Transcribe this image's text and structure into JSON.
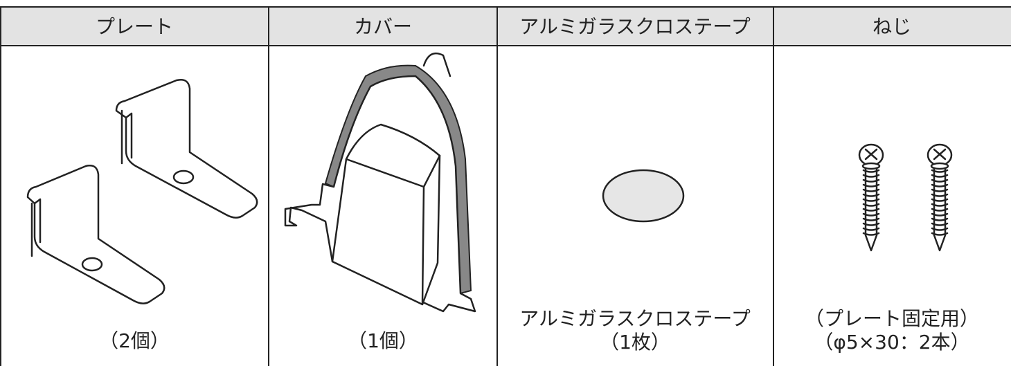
{
  "table": {
    "headers": [
      "プレート",
      "カバー",
      "アルミガラスクロステープ",
      "ねじ"
    ],
    "captions": [
      [
        "（2個）"
      ],
      [
        "（1個）"
      ],
      [
        "アルミガラスクロステープ",
        "（1枚）"
      ],
      [
        "（プレート固定用）",
        "（φ5×30：2本）"
      ]
    ]
  }
}
